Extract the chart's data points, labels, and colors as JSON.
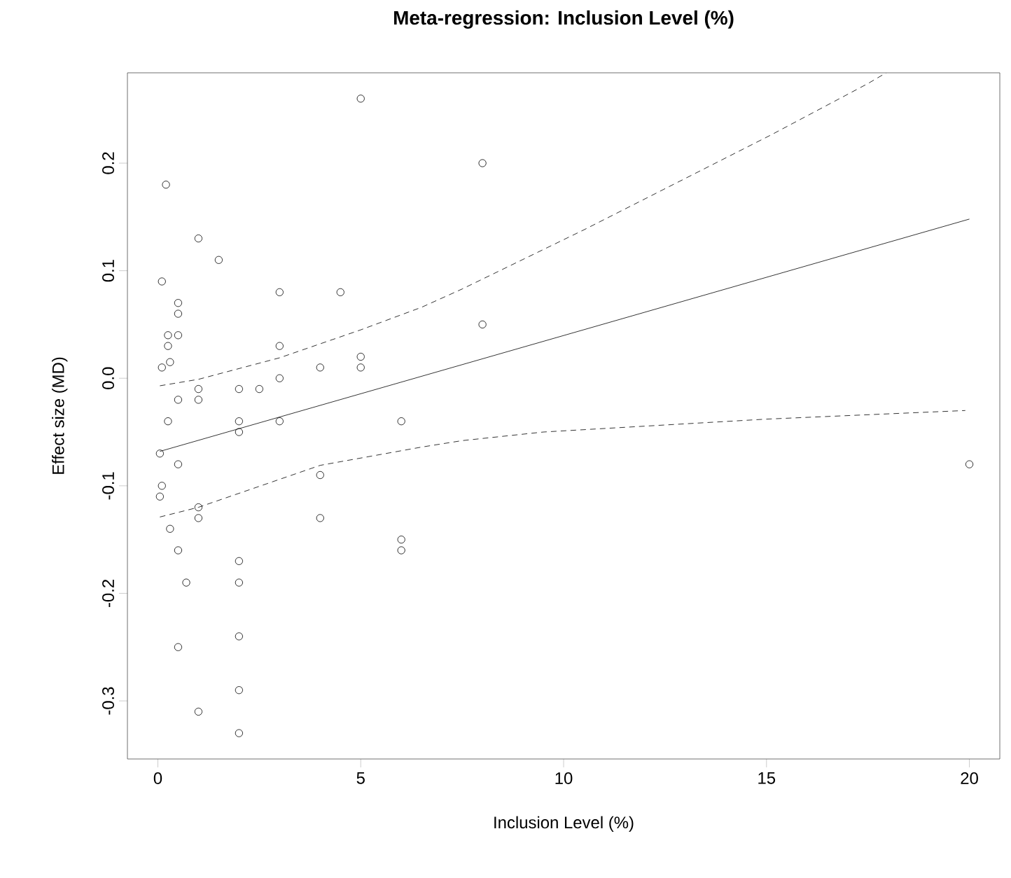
{
  "chart_data": {
    "type": "scatter",
    "title": "Meta-regression: Inclusion Level (%)",
    "xlabel": "Inclusion Level (%)",
    "ylabel": "Effect size (MD)",
    "xlim": [
      -0.75,
      20.75
    ],
    "ylim": [
      -0.354,
      0.284
    ],
    "xticks": [
      0,
      5,
      10,
      15,
      20
    ],
    "yticks": [
      -0.3,
      -0.2,
      -0.1,
      {
        "value": 0,
        "label": "0.0"
      },
      0.1,
      0.2
    ],
    "series": [
      {
        "marker": "circle",
        "color": "#000000",
        "x": [
          5,
          0.2,
          1,
          1.5,
          0.1,
          3,
          4.5,
          0.5,
          0.5,
          0.25,
          0.5,
          0.25,
          3,
          0.1,
          0.3,
          4,
          5,
          5,
          3,
          1,
          1,
          2,
          2.5,
          0.5,
          0.25,
          2,
          3,
          6,
          2,
          0.05,
          0.5,
          0.1,
          0.05,
          1,
          1,
          4,
          4,
          0.3,
          0.5,
          6,
          6,
          2,
          0.7,
          2,
          2,
          0.5,
          2,
          1,
          2,
          8,
          8,
          20
        ],
        "values": [
          0.26,
          0.18,
          0.13,
          0.11,
          0.09,
          0.08,
          0.08,
          0.07,
          0.06,
          0.04,
          0.04,
          0.03,
          0.03,
          0.01,
          0.015,
          0.01,
          0.02,
          0.01,
          0.0,
          -0.01,
          -0.02,
          -0.01,
          -0.01,
          -0.02,
          -0.04,
          -0.04,
          -0.04,
          -0.04,
          -0.05,
          -0.07,
          -0.08,
          -0.1,
          -0.11,
          -0.12,
          -0.13,
          -0.09,
          -0.13,
          -0.14,
          -0.16,
          -0.15,
          -0.16,
          -0.17,
          -0.19,
          -0.19,
          -0.24,
          -0.25,
          -0.29,
          -0.31,
          -0.33,
          0.2,
          0.05,
          -0.08
        ]
      },
      {
        "type": "line",
        "line_style": "solid",
        "color": "#000000",
        "x": [
          0.05,
          20
        ],
        "values": [
          -0.068,
          0.148
        ]
      },
      {
        "type": "line",
        "line_style": "dashed",
        "color": "#000000",
        "x": [
          0.05,
          1,
          3,
          5,
          6.5,
          7.5,
          10.5,
          15.1,
          17.5,
          17.95
        ],
        "values": [
          -0.007,
          -0.001,
          0.019,
          0.045,
          0.066,
          0.083,
          0.138,
          0.226,
          0.274,
          0.284
        ]
      },
      {
        "type": "line",
        "line_style": "dashed",
        "color": "#000000",
        "x": [
          0.05,
          1,
          4,
          6.5,
          7.5,
          9.5,
          15,
          19.9
        ],
        "values": [
          -0.129,
          -0.12,
          -0.081,
          -0.064,
          -0.058,
          -0.05,
          -0.038,
          -0.03
        ]
      }
    ]
  }
}
